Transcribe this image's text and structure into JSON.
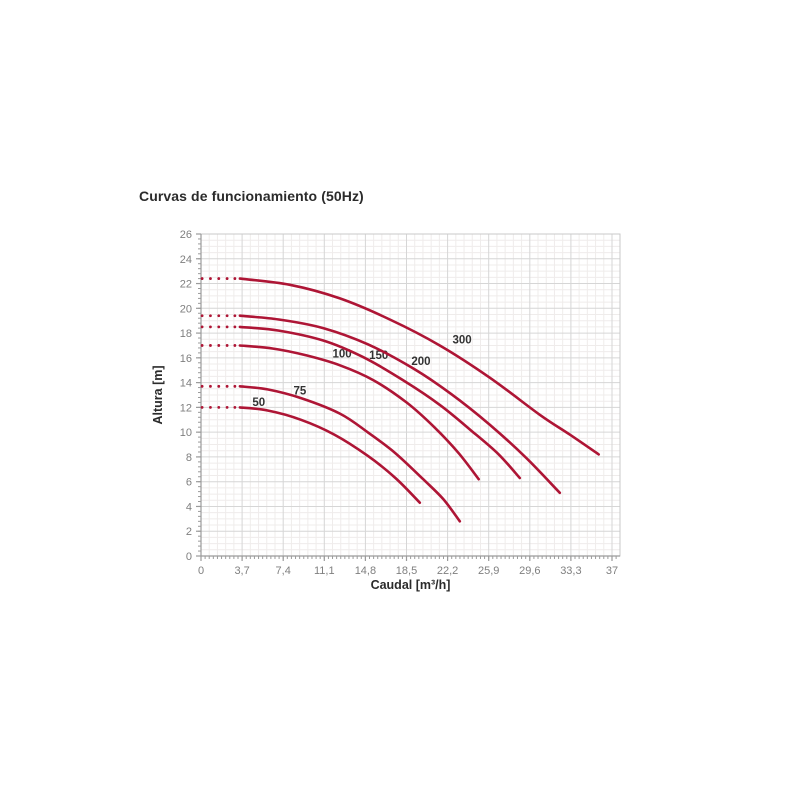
{
  "title": "Curvas de funcionamiento (50Hz)",
  "chart_data": {
    "type": "line",
    "title": "Curvas de funcionamiento (50Hz)",
    "xlabel": "Caudal [m³/h]",
    "ylabel": "Altura [m]",
    "xlim": [
      0,
      37.7
    ],
    "ylim": [
      0,
      26
    ],
    "x_ticks": [
      0,
      3.7,
      7.4,
      11.1,
      14.8,
      18.5,
      22.2,
      25.9,
      29.6,
      33.3,
      37
    ],
    "x_tick_labels": [
      "0",
      "3,7",
      "7,4",
      "11,1",
      "14,8",
      "18,5",
      "22,2",
      "25,9",
      "29,6",
      "33,3",
      "37"
    ],
    "y_ticks": [
      0,
      2,
      4,
      6,
      8,
      10,
      12,
      14,
      16,
      18,
      20,
      22,
      24,
      26
    ],
    "y_tick_labels": [
      "0",
      "2",
      "4",
      "6",
      "8",
      "10",
      "12",
      "14",
      "16",
      "18",
      "20",
      "22",
      "24",
      "26"
    ],
    "grid": true,
    "legend_position": "labels-on-curves",
    "curve_color": "#ae1535",
    "grid_major_color": "#d6d6d6",
    "grid_minor_color": "#efeceb",
    "axis_color": "#9b9b9b",
    "border_color": "#c9c9c9",
    "dotted_prefix_x": [
      0.1,
      0.85,
      1.6,
      2.35,
      3.05
    ],
    "series": [
      {
        "name": "50",
        "shutoff_head_m": 12.0,
        "max_flow_m3h": 19.7,
        "label_pos": [
          5.2,
          12.45
        ],
        "points": [
          [
            3.5,
            12.0
          ],
          [
            6,
            11.75
          ],
          [
            9,
            11.0
          ],
          [
            12,
            9.8
          ],
          [
            15,
            8.1
          ],
          [
            17.5,
            6.3
          ],
          [
            19.7,
            4.3
          ]
        ]
      },
      {
        "name": "75",
        "shutoff_head_m": 13.7,
        "max_flow_m3h": 23.3,
        "label_pos": [
          8.9,
          13.35
        ],
        "points": [
          [
            3.5,
            13.7
          ],
          [
            6,
            13.45
          ],
          [
            9,
            12.75
          ],
          [
            12.5,
            11.5
          ],
          [
            15,
            10.0
          ],
          [
            17.5,
            8.3
          ],
          [
            20,
            6.2
          ],
          [
            21.8,
            4.6
          ],
          [
            23.3,
            2.8
          ]
        ]
      },
      {
        "name": "100",
        "shutoff_head_m": 17.0,
        "max_flow_m3h": 25.0,
        "label_pos": [
          12.7,
          16.35
        ],
        "points": [
          [
            3.5,
            17.0
          ],
          [
            6.5,
            16.75
          ],
          [
            9.5,
            16.2
          ],
          [
            12.5,
            15.4
          ],
          [
            15.5,
            14.2
          ],
          [
            18.5,
            12.4
          ],
          [
            21,
            10.4
          ],
          [
            23.2,
            8.3
          ],
          [
            25,
            6.2
          ]
        ]
      },
      {
        "name": "150",
        "shutoff_head_m": 18.5,
        "max_flow_m3h": 28.7,
        "label_pos": [
          16.0,
          16.25
        ],
        "points": [
          [
            3.5,
            18.5
          ],
          [
            7,
            18.2
          ],
          [
            11,
            17.4
          ],
          [
            14.5,
            16.1
          ],
          [
            18,
            14.3
          ],
          [
            21.5,
            12.2
          ],
          [
            24.5,
            10.0
          ],
          [
            26.8,
            8.2
          ],
          [
            28.7,
            6.3
          ]
        ]
      },
      {
        "name": "200",
        "shutoff_head_m": 19.4,
        "max_flow_m3h": 32.3,
        "label_pos": [
          19.8,
          15.75
        ],
        "points": [
          [
            3.5,
            19.4
          ],
          [
            7,
            19.1
          ],
          [
            11,
            18.4
          ],
          [
            15,
            17.1
          ],
          [
            19,
            15.2
          ],
          [
            22.5,
            13.1
          ],
          [
            26,
            10.6
          ],
          [
            29.3,
            7.9
          ],
          [
            32.3,
            5.1
          ]
        ]
      },
      {
        "name": "300",
        "shutoff_head_m": 22.4,
        "max_flow_m3h": 35.8,
        "label_pos": [
          23.5,
          17.5
        ],
        "points": [
          [
            3.5,
            22.4
          ],
          [
            8,
            21.9
          ],
          [
            12.5,
            20.8
          ],
          [
            17,
            19.1
          ],
          [
            21.5,
            17.0
          ],
          [
            26,
            14.4
          ],
          [
            30.5,
            11.4
          ],
          [
            33.2,
            9.8
          ],
          [
            35.8,
            8.2
          ]
        ]
      }
    ]
  }
}
